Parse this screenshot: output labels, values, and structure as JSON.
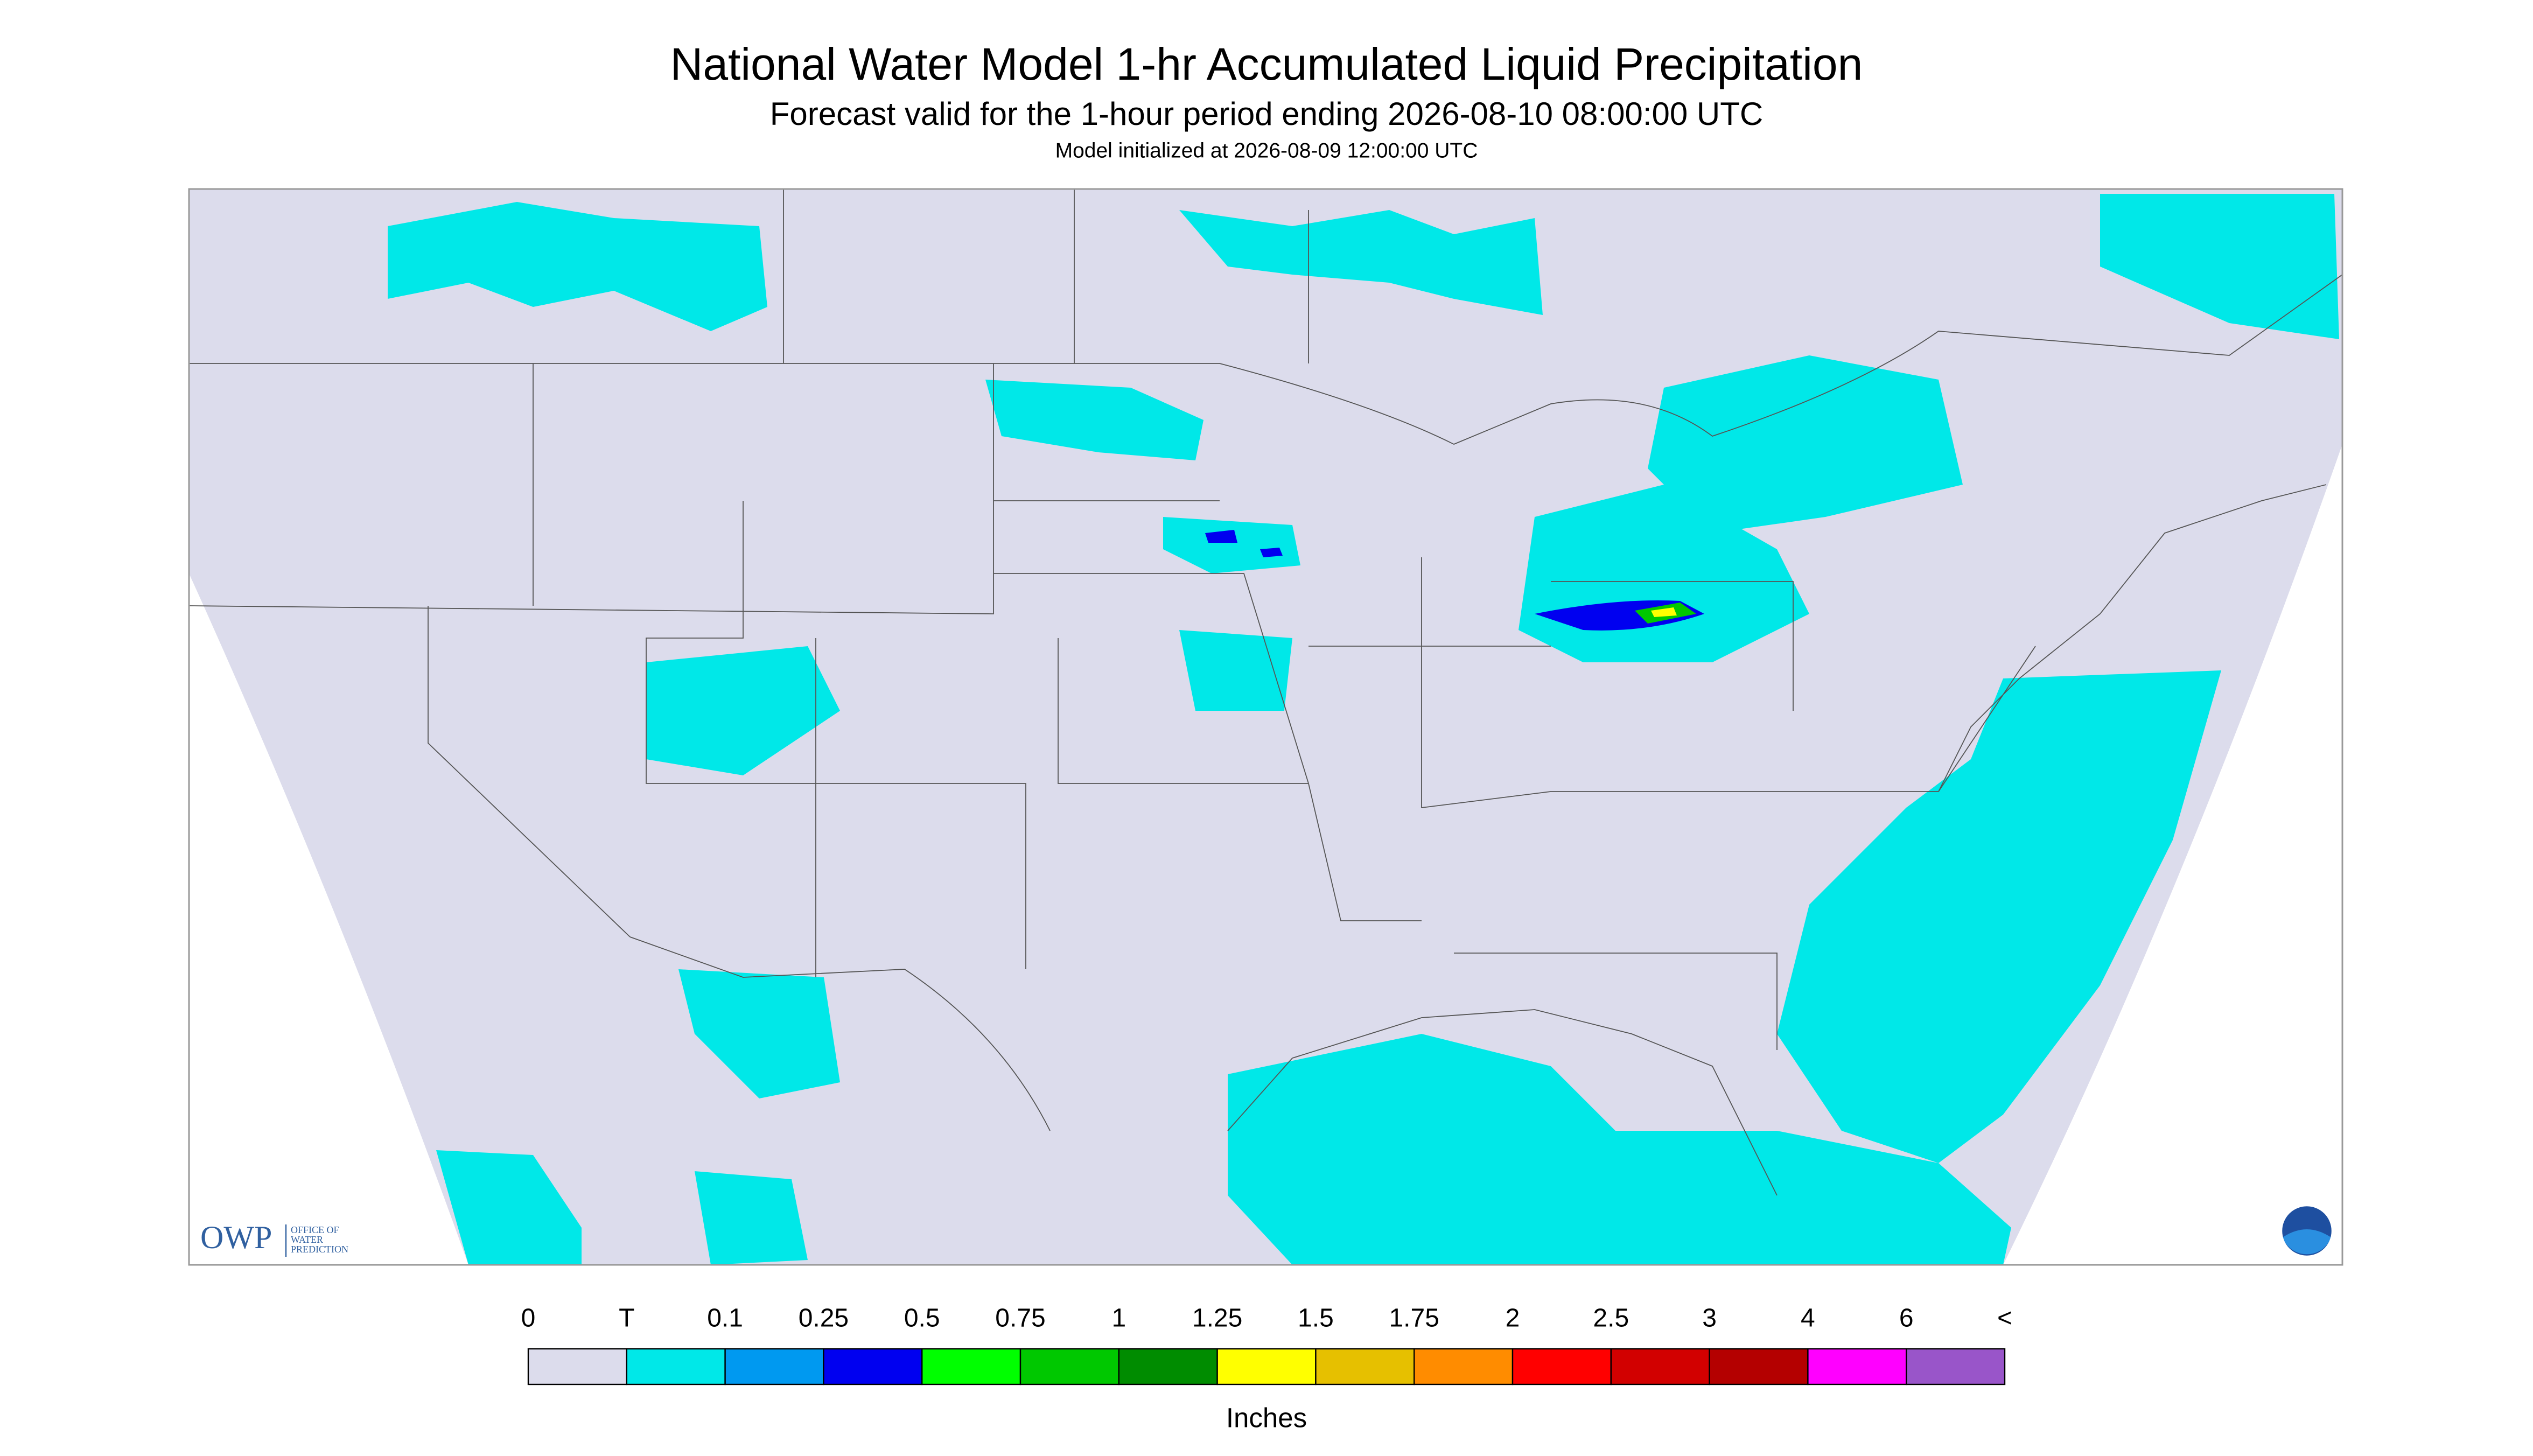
{
  "header": {
    "title": "National Water Model 1-hr Accumulated Liquid Precipitation",
    "subtitle": "Forecast valid for the 1-hour period ending 2026-08-10 08:00:00 UTC",
    "init": "Model initialized at 2026-08-09 12:00:00 UTC"
  },
  "logo": {
    "short": "OWP",
    "long": [
      "OFFICE OF",
      "WATER",
      "PREDICTION"
    ]
  },
  "legend": {
    "labels": [
      "0",
      "T",
      "0.1",
      "0.25",
      "0.5",
      "0.75",
      "1",
      "1.25",
      "1.5",
      "1.75",
      "2",
      "2.5",
      "3",
      "4",
      "6",
      "<"
    ],
    "colors": [
      "#dcdcec",
      "#00e8e8",
      "#0099f0",
      "#0000f0",
      "#00ff00",
      "#00c800",
      "#008c00",
      "#ffff00",
      "#e6c000",
      "#ff8c00",
      "#ff0000",
      "#d20000",
      "#b40000",
      "#ff00ff",
      "#9955c9"
    ],
    "unit": "Inches"
  }
}
